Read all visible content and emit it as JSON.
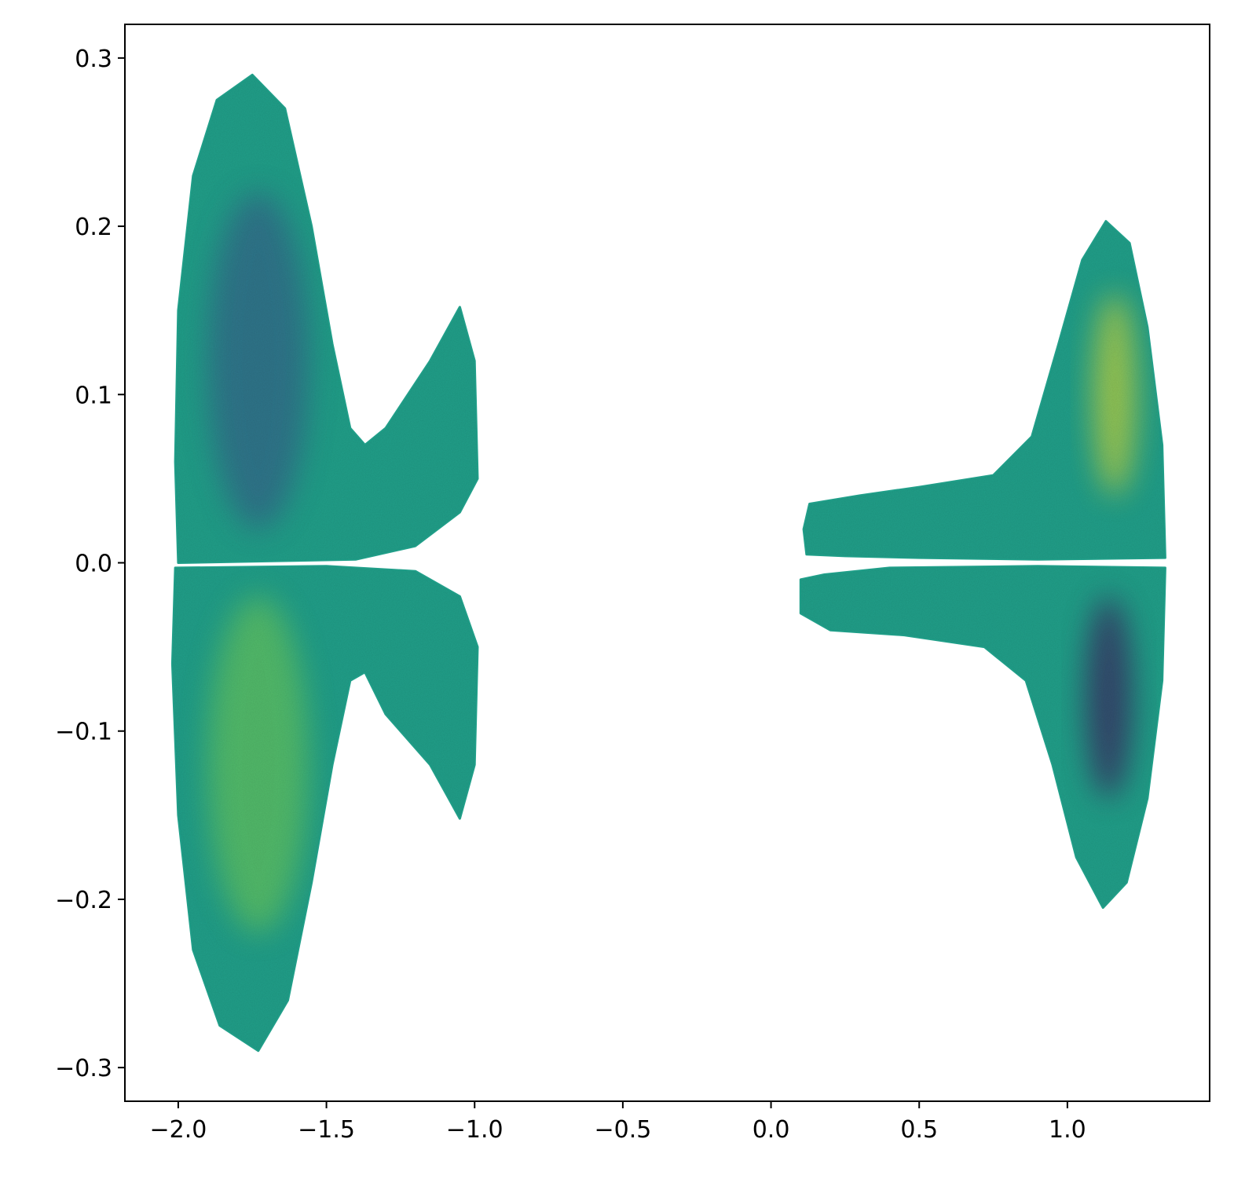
{
  "chart_data": {
    "type": "scatter",
    "title": "",
    "xlabel": "",
    "ylabel": "",
    "xlim": [
      -2.18,
      1.48
    ],
    "ylim": [
      -0.32,
      0.32
    ],
    "grid": false,
    "legend": "none",
    "x_ticks": [
      -2.0,
      -1.5,
      -1.0,
      -0.5,
      0.0,
      0.5,
      1.0
    ],
    "x_tick_labels": [
      "−2.0",
      "−1.5",
      "−1.0",
      "−0.5",
      "0.0",
      "0.5",
      "1.0"
    ],
    "y_ticks": [
      0.3,
      0.2,
      0.1,
      0.0,
      -0.1,
      -0.2,
      -0.3
    ],
    "y_tick_labels": [
      "0.3",
      "0.2",
      "0.1",
      "0.0",
      "−0.1",
      "−0.2",
      "−0.3"
    ],
    "colormap": "viridis",
    "colors": {
      "base": "#21a08a",
      "low": "#3b528b",
      "lowest": "#440154",
      "high": "#7ad151",
      "highest": "#fde725"
    },
    "clusters": [
      {
        "region": "left upper lobe",
        "outline": [
          [
            -2.0,
            0.0
          ],
          [
            -2.01,
            0.06
          ],
          [
            -2.0,
            0.15
          ],
          [
            -1.95,
            0.23
          ],
          [
            -1.87,
            0.275
          ],
          [
            -1.75,
            0.29
          ],
          [
            -1.64,
            0.27
          ],
          [
            -1.55,
            0.2
          ],
          [
            -1.48,
            0.13
          ],
          [
            -1.42,
            0.08
          ],
          [
            -1.37,
            0.07
          ],
          [
            -1.3,
            0.08
          ],
          [
            -1.15,
            0.12
          ],
          [
            -1.05,
            0.152
          ],
          [
            -1.0,
            0.12
          ],
          [
            -0.99,
            0.05
          ],
          [
            -1.05,
            0.03
          ],
          [
            -1.2,
            0.01
          ],
          [
            -1.4,
            0.002
          ],
          [
            -1.7,
            0.001
          ],
          [
            -2.0,
            0.0
          ]
        ],
        "tint": "low"
      },
      {
        "region": "left lower lobe",
        "outline": [
          [
            -2.01,
            -0.003
          ],
          [
            -2.02,
            -0.06
          ],
          [
            -2.0,
            -0.15
          ],
          [
            -1.95,
            -0.23
          ],
          [
            -1.86,
            -0.275
          ],
          [
            -1.73,
            -0.29
          ],
          [
            -1.63,
            -0.26
          ],
          [
            -1.55,
            -0.19
          ],
          [
            -1.48,
            -0.12
          ],
          [
            -1.42,
            -0.07
          ],
          [
            -1.37,
            -0.065
          ],
          [
            -1.3,
            -0.09
          ],
          [
            -1.15,
            -0.12
          ],
          [
            -1.05,
            -0.152
          ],
          [
            -1.0,
            -0.12
          ],
          [
            -0.99,
            -0.05
          ],
          [
            -1.05,
            -0.02
          ],
          [
            -1.2,
            -0.005
          ],
          [
            -1.5,
            -0.002
          ],
          [
            -2.01,
            -0.003
          ]
        ],
        "tint": "high"
      },
      {
        "region": "right upper lobe",
        "outline": [
          [
            0.12,
            0.005
          ],
          [
            0.11,
            0.02
          ],
          [
            0.13,
            0.035
          ],
          [
            0.3,
            0.04
          ],
          [
            0.5,
            0.045
          ],
          [
            0.75,
            0.052
          ],
          [
            0.88,
            0.075
          ],
          [
            0.97,
            0.13
          ],
          [
            1.05,
            0.18
          ],
          [
            1.13,
            0.203
          ],
          [
            1.21,
            0.19
          ],
          [
            1.27,
            0.14
          ],
          [
            1.32,
            0.07
          ],
          [
            1.33,
            0.003
          ],
          [
            0.9,
            0.002
          ],
          [
            0.5,
            0.003
          ],
          [
            0.25,
            0.004
          ],
          [
            0.12,
            0.005
          ]
        ],
        "tint": "high"
      },
      {
        "region": "right lower lobe",
        "outline": [
          [
            0.1,
            -0.01
          ],
          [
            0.1,
            -0.03
          ],
          [
            0.2,
            -0.04
          ],
          [
            0.45,
            -0.043
          ],
          [
            0.72,
            -0.05
          ],
          [
            0.86,
            -0.07
          ],
          [
            0.95,
            -0.12
          ],
          [
            1.03,
            -0.175
          ],
          [
            1.12,
            -0.205
          ],
          [
            1.2,
            -0.19
          ],
          [
            1.27,
            -0.14
          ],
          [
            1.32,
            -0.07
          ],
          [
            1.33,
            -0.003
          ],
          [
            0.9,
            -0.002
          ],
          [
            0.4,
            -0.003
          ],
          [
            0.18,
            -0.007
          ],
          [
            0.1,
            -0.01
          ]
        ],
        "tint": "low"
      }
    ],
    "highlights": [
      {
        "x": 1.16,
        "y": 0.1,
        "rx": 0.075,
        "ry": 0.06,
        "color": "highest"
      },
      {
        "x": 1.14,
        "y": -0.08,
        "rx": 0.08,
        "ry": 0.06,
        "color": "lowest"
      },
      {
        "x": -1.73,
        "y": 0.12,
        "rx": 0.17,
        "ry": 0.1,
        "color": "low"
      },
      {
        "x": -1.73,
        "y": -0.12,
        "rx": 0.17,
        "ry": 0.1,
        "color": "high"
      }
    ]
  }
}
